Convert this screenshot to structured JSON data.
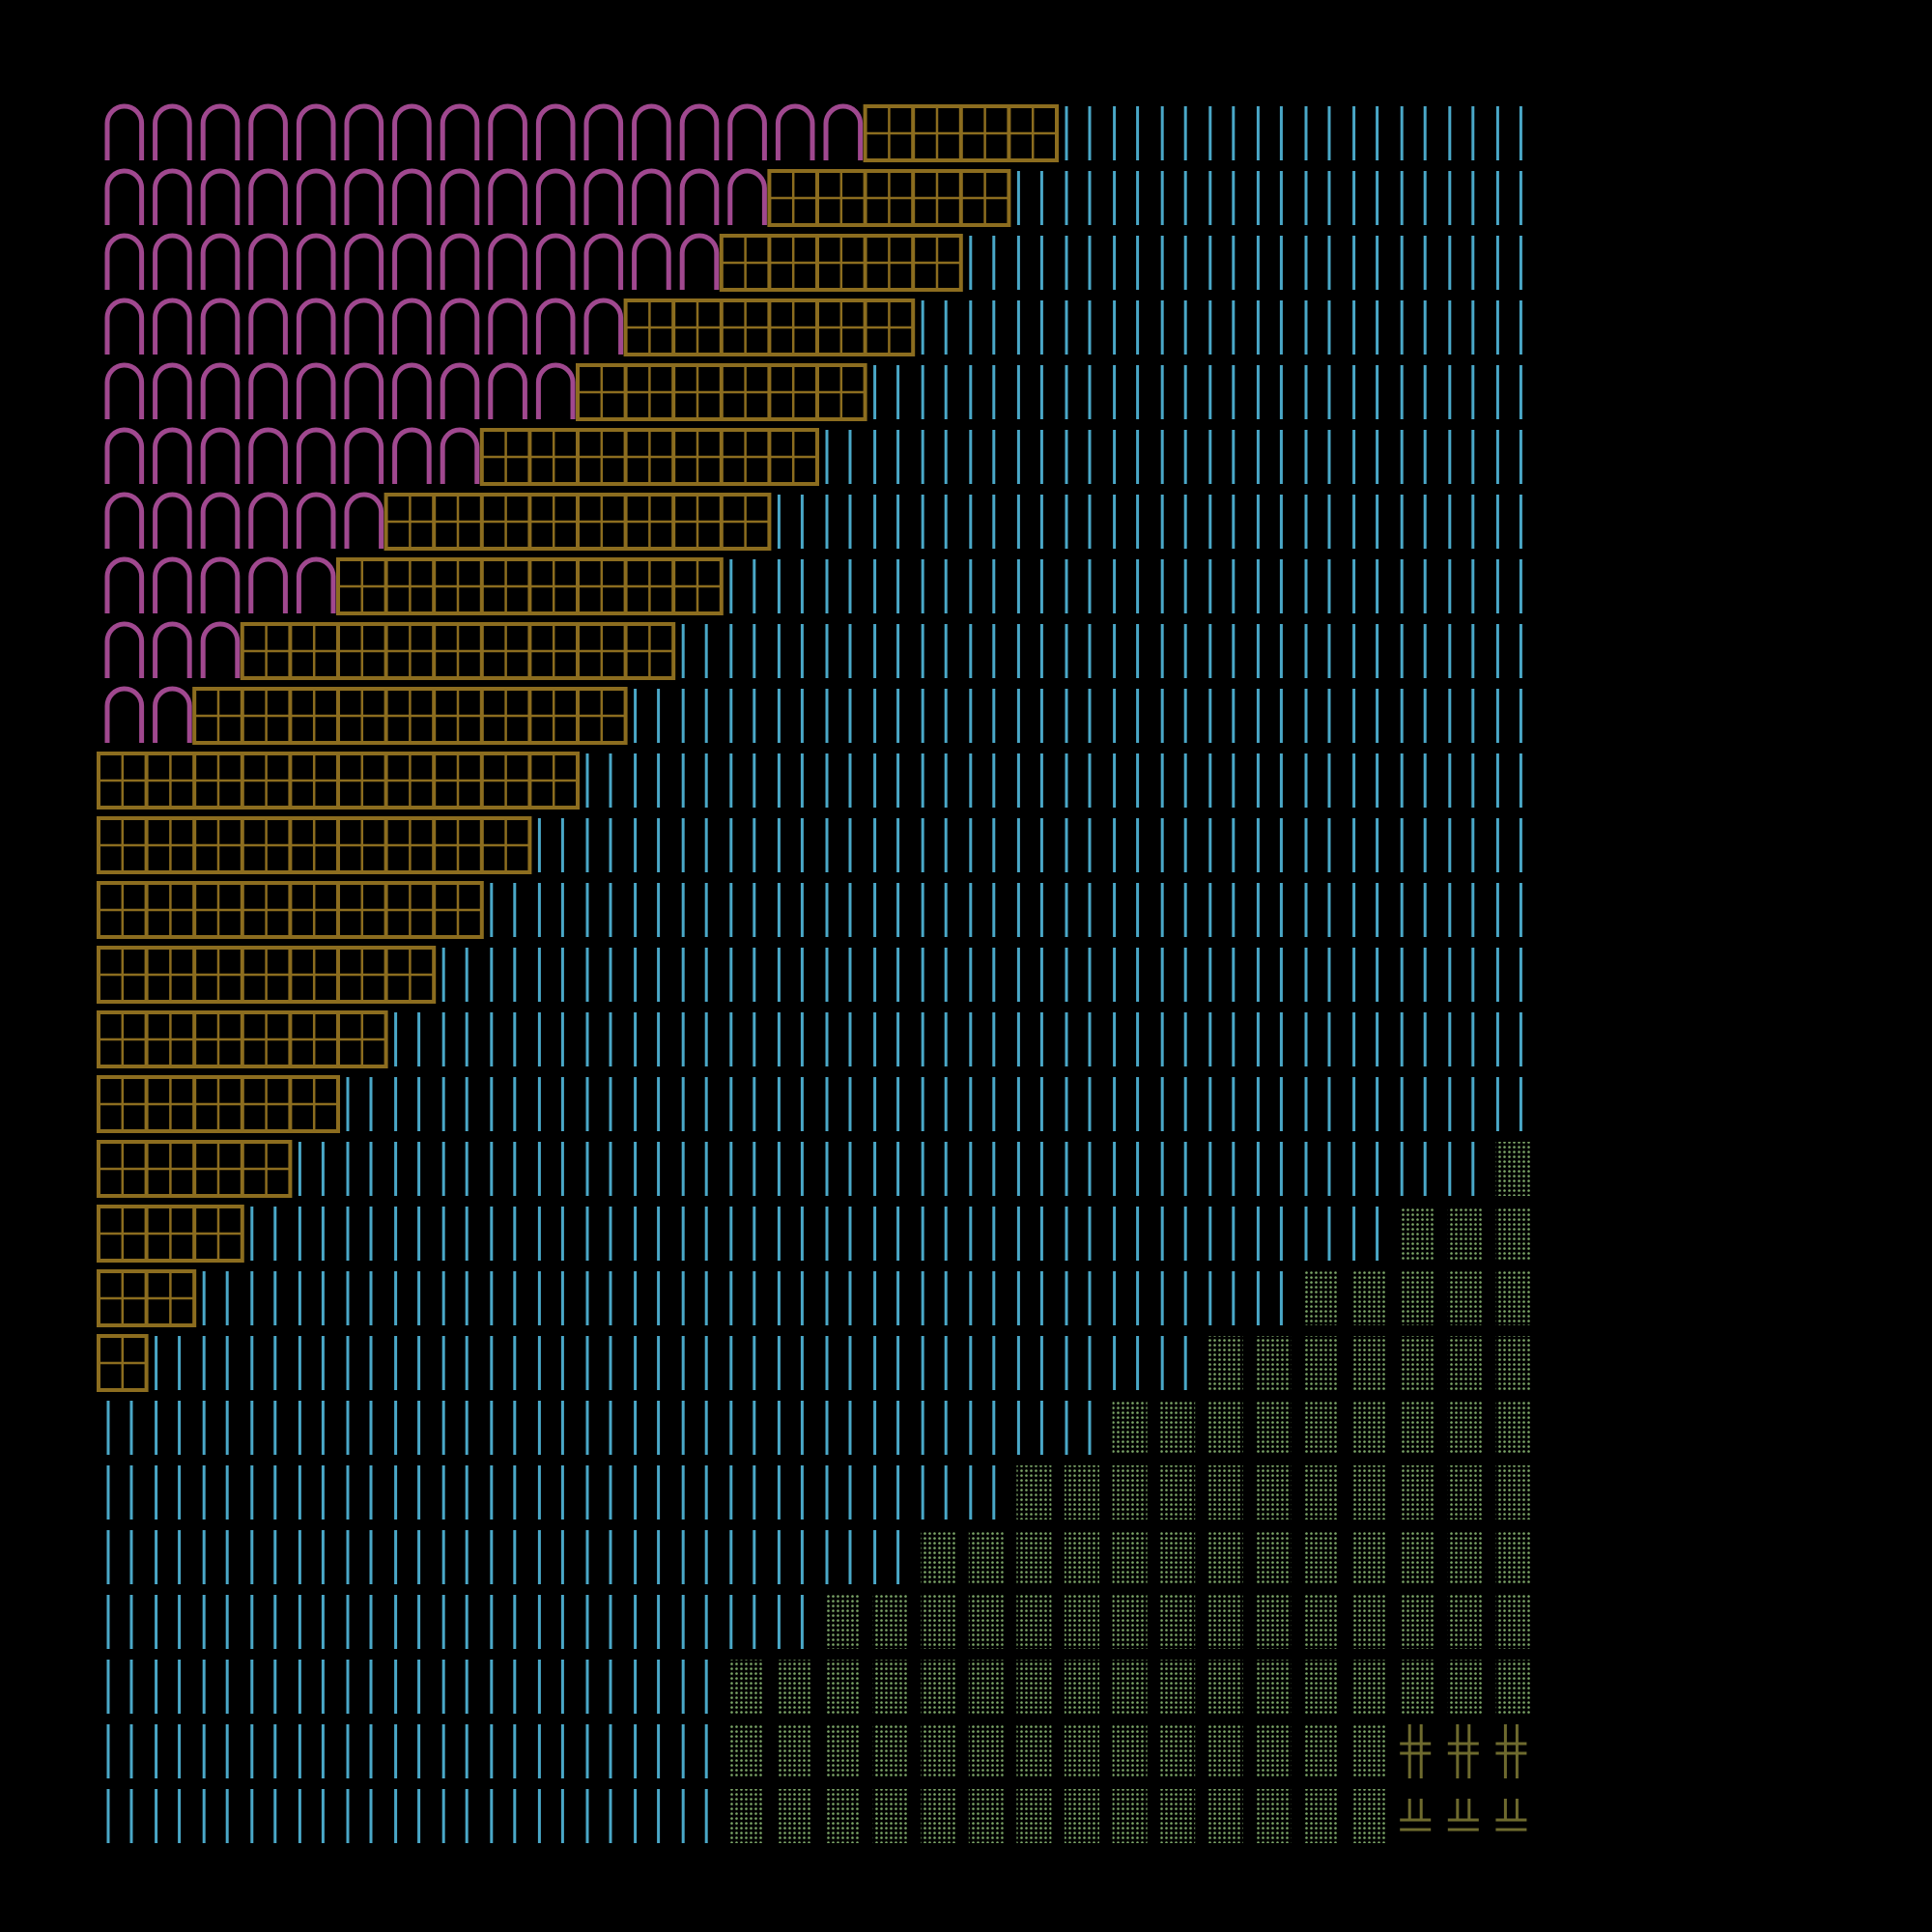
{
  "artwork": {
    "background": "#000000",
    "palette": {
      "arch": "#a0488f",
      "grid": "#8c6d1f",
      "bars": "#4aa8c8",
      "dots": "#7ea86a",
      "junction": "#6e6a2e"
    },
    "motifs": [
      "arch-glyph",
      "grid-cell",
      "vertical-bar-pair",
      "dot-stipple",
      "box-junction-glyph"
    ]
  }
}
